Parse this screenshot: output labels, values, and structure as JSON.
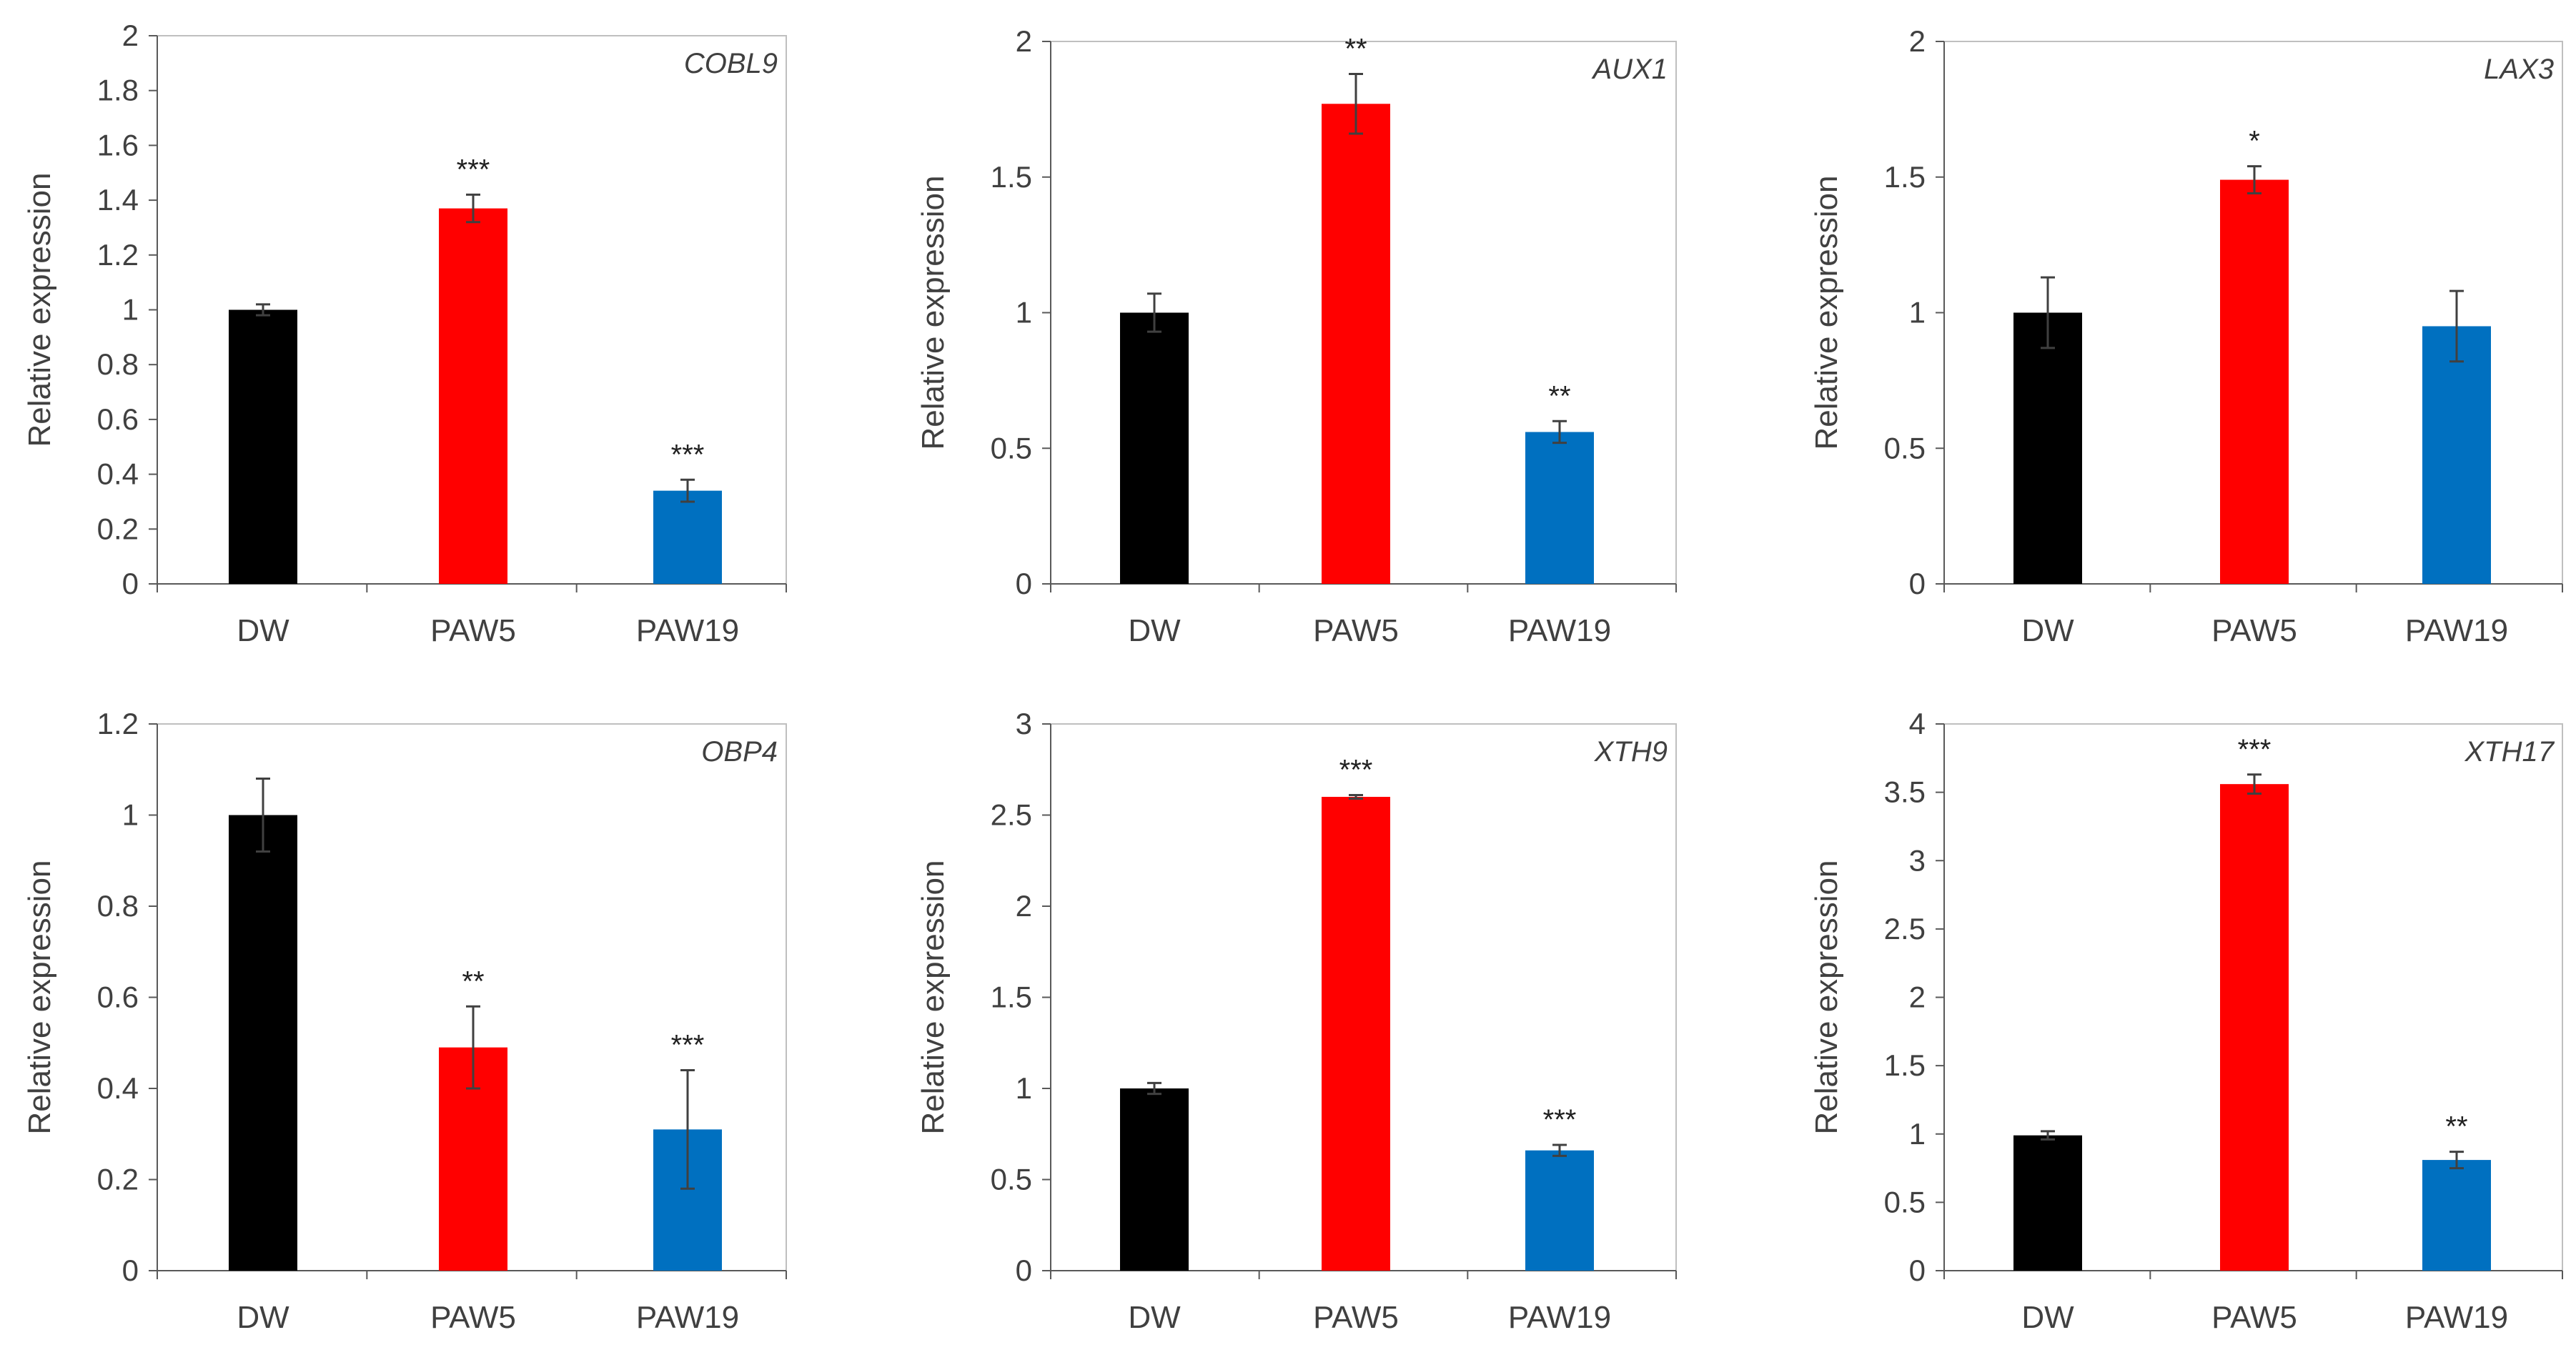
{
  "chart_data": [
    {
      "type": "bar",
      "title": "COBL9",
      "ylabel": "Relative expression",
      "categories": [
        "DW",
        "PAW5",
        "PAW19"
      ],
      "values": [
        1.0,
        1.37,
        0.34
      ],
      "errors": [
        0.02,
        0.05,
        0.04
      ],
      "significance": [
        "",
        "***",
        "***"
      ],
      "ylim": [
        0,
        2
      ],
      "yticks": [
        "0",
        "0.2",
        "0.4",
        "0.6",
        "0.8",
        "1",
        "1.2",
        "1.4",
        "1.6",
        "1.8",
        "2"
      ],
      "colors": [
        "#000000",
        "#ff0000",
        "#0070c0"
      ]
    },
    {
      "type": "bar",
      "title": "AUX1",
      "ylabel": "Relative expression",
      "categories": [
        "DW",
        "PAW5",
        "PAW19"
      ],
      "values": [
        1.0,
        1.77,
        0.56
      ],
      "errors": [
        0.07,
        0.11,
        0.04
      ],
      "significance": [
        "",
        "**",
        "**"
      ],
      "ylim": [
        0,
        2
      ],
      "yticks": [
        "0",
        "0.5",
        "1",
        "1.5",
        "2"
      ],
      "colors": [
        "#000000",
        "#ff0000",
        "#0070c0"
      ]
    },
    {
      "type": "bar",
      "title": "LAX3",
      "ylabel": "Relative expression",
      "categories": [
        "DW",
        "PAW5",
        "PAW19"
      ],
      "values": [
        1.0,
        1.49,
        0.95
      ],
      "errors": [
        0.13,
        0.05,
        0.13
      ],
      "significance": [
        "",
        "*",
        ""
      ],
      "ylim": [
        0,
        2
      ],
      "yticks": [
        "0",
        "0.5",
        "1",
        "1.5",
        "2"
      ],
      "colors": [
        "#000000",
        "#ff0000",
        "#0070c0"
      ]
    },
    {
      "type": "bar",
      "title": "OBP4",
      "ylabel": "Relative expression",
      "categories": [
        "DW",
        "PAW5",
        "PAW19"
      ],
      "values": [
        1.0,
        0.49,
        0.31
      ],
      "errors": [
        0.08,
        0.09,
        0.13
      ],
      "significance": [
        "",
        "**",
        "***"
      ],
      "ylim": [
        0,
        1.2
      ],
      "yticks": [
        "0",
        "0.2",
        "0.4",
        "0.6",
        "0.8",
        "1",
        "1.2"
      ],
      "colors": [
        "#000000",
        "#ff0000",
        "#0070c0"
      ]
    },
    {
      "type": "bar",
      "title": "XTH9",
      "ylabel": "Relative expression",
      "categories": [
        "DW",
        "PAW5",
        "PAW19"
      ],
      "values": [
        1.0,
        2.6,
        0.66
      ],
      "errors": [
        0.03,
        0.01,
        0.03
      ],
      "significance": [
        "",
        "***",
        "***"
      ],
      "ylim": [
        0,
        3
      ],
      "yticks": [
        "0",
        "0.5",
        "1",
        "1.5",
        "2",
        "2.5",
        "3"
      ],
      "colors": [
        "#000000",
        "#ff0000",
        "#0070c0"
      ]
    },
    {
      "type": "bar",
      "title": "XTH17",
      "ylabel": "Relative expression",
      "categories": [
        "DW",
        "PAW5",
        "PAW19"
      ],
      "values": [
        0.99,
        3.56,
        0.81
      ],
      "errors": [
        0.03,
        0.07,
        0.06
      ],
      "significance": [
        "",
        "***",
        "**"
      ],
      "ylim": [
        0,
        4
      ],
      "yticks": [
        "0",
        "0.5",
        "1",
        "1.5",
        "2",
        "2.5",
        "3",
        "3.5",
        "4"
      ],
      "colors": [
        "#000000",
        "#ff0000",
        "#0070c0"
      ]
    }
  ]
}
